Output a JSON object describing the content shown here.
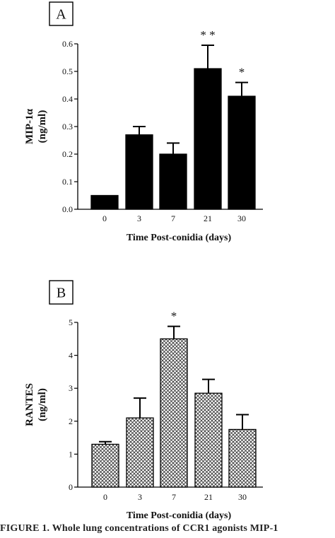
{
  "chart_data": [
    {
      "type": "bar",
      "panel_label": "A",
      "categories": [
        "0",
        "3",
        "7",
        "21",
        "30"
      ],
      "values": [
        0.05,
        0.27,
        0.2,
        0.51,
        0.41
      ],
      "errors": [
        0.0,
        0.03,
        0.04,
        0.085,
        0.05
      ],
      "significance": [
        "",
        "",
        "",
        "* *",
        "*"
      ],
      "xlabel": "Time Post-conidia (days)",
      "ylabel_line1": "MIP-1α",
      "ylabel_line2": "(ng/ml)",
      "ylim": [
        0,
        0.6
      ],
      "yticks": [
        "0.0",
        "0.1",
        "0.2",
        "0.3",
        "0.4",
        "0.5",
        "0.6"
      ],
      "bar_fill": "solid",
      "colors": {
        "bar": "#000000",
        "axis": "#000000"
      },
      "grid": false
    },
    {
      "type": "bar",
      "panel_label": "B",
      "categories": [
        "0",
        "3",
        "7",
        "21",
        "30"
      ],
      "values": [
        1.3,
        2.1,
        4.5,
        2.85,
        1.75
      ],
      "errors": [
        0.08,
        0.6,
        0.38,
        0.42,
        0.45
      ],
      "significance": [
        "",
        "",
        "*",
        "",
        ""
      ],
      "xlabel": "Time Post-conidia (days)",
      "ylabel_line1": "RANTES",
      "ylabel_line2": "(ng/ml)",
      "ylim": [
        0,
        5
      ],
      "yticks": [
        "0",
        "1",
        "2",
        "3",
        "4",
        "5"
      ],
      "bar_fill": "crosshatch",
      "colors": {
        "bar": "#000000",
        "axis": "#000000"
      },
      "grid": false
    }
  ],
  "caption": "FIGURE 1.   Whole lung concentrations of CCR1 agonists MIP-1"
}
